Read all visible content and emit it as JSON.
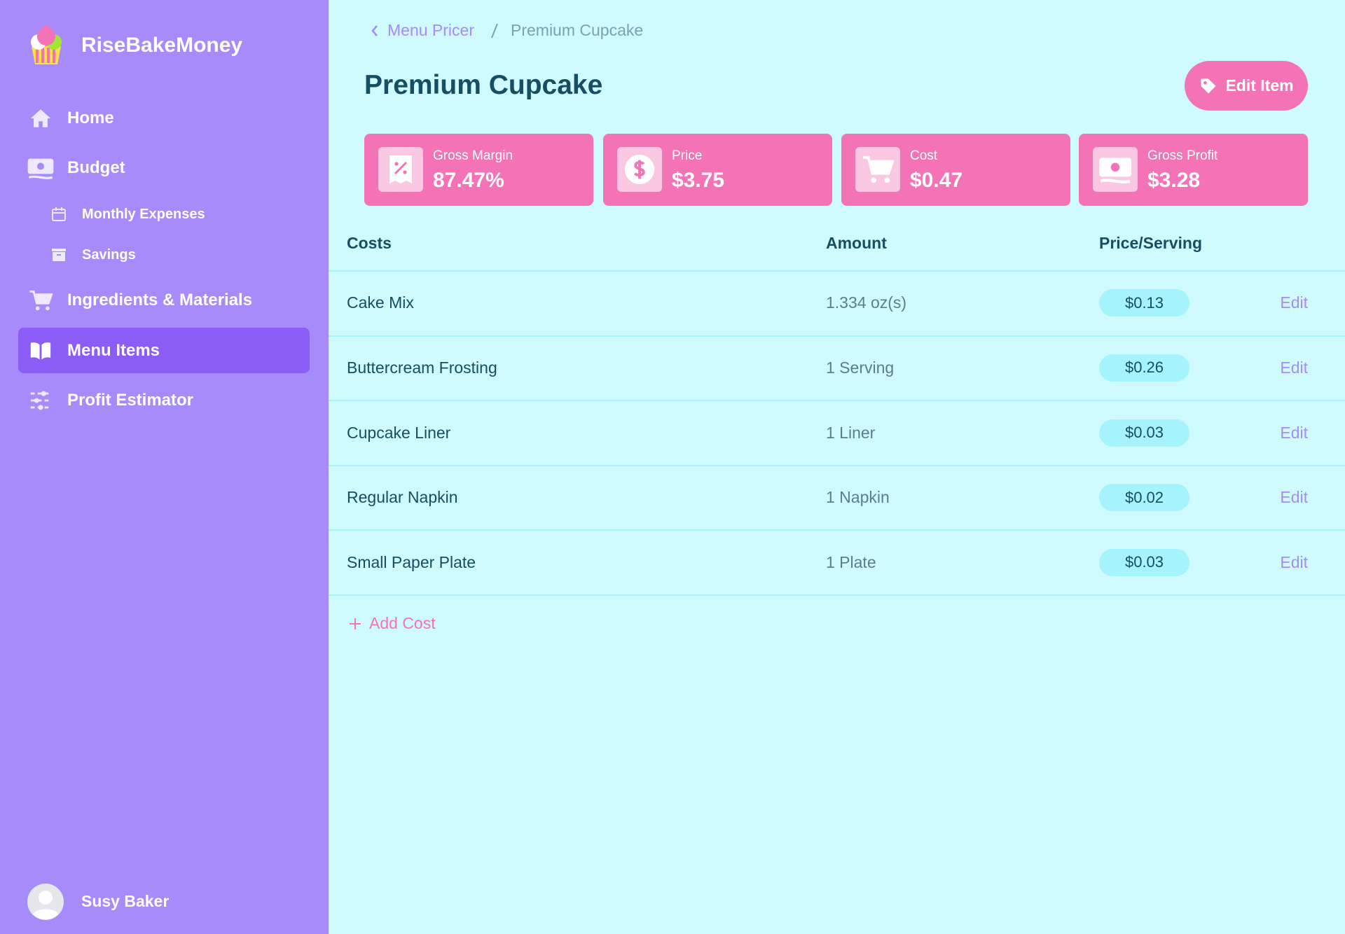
{
  "sidebar": {
    "brand": "RiseBakeMoney",
    "nav": [
      {
        "label": "Home"
      },
      {
        "label": "Budget"
      },
      {
        "label": "Monthly Expenses"
      },
      {
        "label": "Savings"
      },
      {
        "label": "Ingredients & Materials"
      },
      {
        "label": "Menu Items"
      },
      {
        "label": "Profit Estimator"
      }
    ],
    "user": "Susy Baker"
  },
  "breadcrumb": [
    "Menu Pricer",
    "Premium Cupcake"
  ],
  "title": "Premium Cupcake",
  "button": "Edit Item",
  "stats": [
    {
      "label": "Gross Margin",
      "value": "87.47%"
    },
    {
      "label": "Price",
      "value": "$3.75"
    },
    {
      "label": "Cost",
      "value": "$0.47"
    },
    {
      "label": "Gross Profit",
      "value": "$3.28"
    }
  ],
  "table": {
    "headers": [
      "Costs",
      "Amount",
      "Price/Serving"
    ],
    "rows": [
      [
        "Cake Mix",
        "1.334 oz(s)",
        "$0.13",
        "Edit"
      ],
      [
        "Buttercream Frosting",
        "1 Serving",
        "$0.26",
        "Edit"
      ],
      [
        "Cupcake Liner",
        "1 Liner",
        "$0.03",
        "Edit"
      ],
      [
        "Regular Napkin",
        "1 Napkin",
        "$0.02",
        "Edit"
      ],
      [
        "Small Paper Plate",
        "1 Plate",
        "$0.03",
        "Edit"
      ]
    ]
  },
  "add_cost": "Add Cost"
}
